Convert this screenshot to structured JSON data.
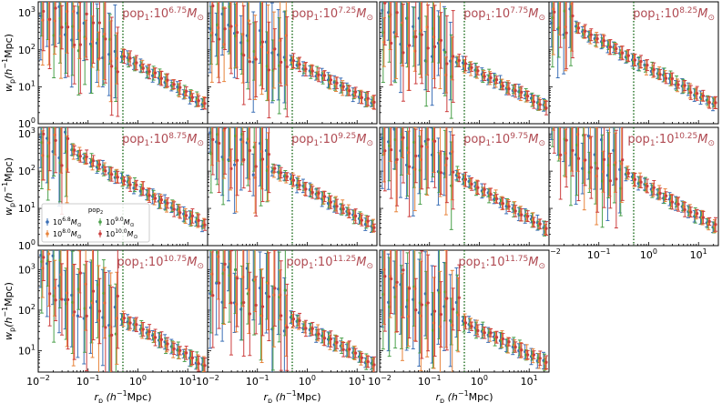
{
  "chart_data": {
    "type": "scatter",
    "xlabel_prefix": "r",
    "xlabel_sub": "p",
    "xlabel_suffix": " (h",
    "xlabel_sup": "−1",
    "xlabel_end": "Mpc)",
    "ylabel_prefix": "w",
    "ylabel_sub": "p",
    "ylabel_suffix": "(h",
    "ylabel_sup": "−1",
    "ylabel_end": "Mpc)",
    "x_scale": "log",
    "y_scale": "log",
    "xlim": [
      0.01,
      25
    ],
    "ylim_rows": [
      [
        1,
        2000
      ],
      [
        1,
        1500
      ],
      [
        3,
        3000
      ]
    ],
    "x_ticks": [
      {
        "base": "10",
        "exp": "−2"
      },
      {
        "base": "10",
        "exp": "−1"
      },
      {
        "base": "10",
        "exp": "0"
      },
      {
        "base": "10",
        "exp": "1"
      }
    ],
    "y_ticks_rows": [
      [
        {
          "base": "10",
          "exp": "0"
        },
        {
          "base": "10",
          "exp": "1"
        },
        {
          "base": "10",
          "exp": "2"
        },
        {
          "base": "10",
          "exp": "3"
        }
      ],
      [
        {
          "base": "10",
          "exp": "0"
        },
        {
          "base": "10",
          "exp": "1"
        },
        {
          "base": "10",
          "exp": "2"
        },
        {
          "base": "10",
          "exp": "3"
        }
      ],
      [
        {
          "base": "10",
          "exp": "1"
        },
        {
          "base": "10",
          "exp": "2"
        },
        {
          "base": "10",
          "exp": "3"
        }
      ]
    ],
    "vline_x": 0.5,
    "vline_color": "#1a6b1a",
    "legend": {
      "title_main": "pop",
      "title_sub": "2",
      "placement": "lower-left of panel 5",
      "entries": [
        {
          "base": "10",
          "exp": "6.8",
          "unit": "M",
          "sub": "⊙",
          "color": "#3b6fb6"
        },
        {
          "base": "10",
          "exp": "9.0",
          "unit": "M",
          "sub": "⊙",
          "color": "#4aa04a"
        },
        {
          "base": "10",
          "exp": "8.0",
          "unit": "M",
          "sub": "⊙",
          "color": "#e8833a"
        },
        {
          "base": "10",
          "exp": "10.0",
          "unit": "M",
          "sub": "⊙",
          "color": "#cc3d3d"
        }
      ]
    },
    "series_colors": [
      "#3b6fb6",
      "#4aa04a",
      "#e8833a",
      "#cc3d3d"
    ],
    "x": [
      0.012,
      0.016,
      0.021,
      0.028,
      0.037,
      0.05,
      0.066,
      0.088,
      0.12,
      0.16,
      0.21,
      0.28,
      0.37,
      0.5,
      0.66,
      0.88,
      1.2,
      1.6,
      2.1,
      2.8,
      3.7,
      5.0,
      6.6,
      8.8,
      11.7,
      15.6,
      20.7
    ],
    "panels": [
      {
        "title_prefix": "pop",
        "title_sub": "1",
        "title_base": ":10",
        "title_exp": "6.75",
        "title_unit": "M",
        "title_unit_sub": "⊙",
        "amp": 70,
        "slope": 0.8,
        "noisy_below": 0.5
      },
      {
        "title_prefix": "pop",
        "title_sub": "1",
        "title_base": ":10",
        "title_exp": "7.25",
        "title_unit": "M",
        "title_unit_sub": "⊙",
        "amp": 50,
        "slope": 0.7,
        "noisy_below": 0.5
      },
      {
        "title_prefix": "pop",
        "title_sub": "1",
        "title_base": ":10",
        "title_exp": "7.75",
        "title_unit": "M",
        "title_unit_sub": "⊙",
        "amp": 40,
        "slope": 0.7,
        "noisy_below": 0.3
      },
      {
        "title_prefix": "pop",
        "title_sub": "1",
        "title_base": ":10",
        "title_exp": "8.25",
        "title_unit": "M",
        "title_unit_sub": "⊙",
        "amp": 55,
        "slope": 0.75,
        "noisy_below": 0.03
      },
      {
        "title_prefix": "pop",
        "title_sub": "1",
        "title_base": ":10",
        "title_exp": "8.75",
        "title_unit": "M",
        "title_unit_sub": "⊙",
        "amp": 60,
        "slope": 0.75,
        "noisy_below": 0.05
      },
      {
        "title_prefix": "pop",
        "title_sub": "1",
        "title_base": ":10",
        "title_exp": "9.25",
        "title_unit": "M",
        "title_unit_sub": "⊙",
        "amp": 55,
        "slope": 0.75,
        "noisy_below": 0.2
      },
      {
        "title_prefix": "pop",
        "title_sub": "1",
        "title_base": ":10",
        "title_exp": "9.75",
        "title_unit": "M",
        "title_unit_sub": "⊙",
        "amp": 60,
        "slope": 0.8,
        "noisy_below": 0.3
      },
      {
        "title_prefix": "pop",
        "title_sub": "1",
        "title_base": ":10",
        "title_exp": "10.25",
        "title_unit": "M",
        "title_unit_sub": "⊙",
        "amp": 65,
        "slope": 0.8,
        "noisy_below": 0.3
      },
      {
        "title_prefix": "pop",
        "title_sub": "1",
        "title_base": ":10",
        "title_exp": "10.75",
        "title_unit": "M",
        "title_unit_sub": "⊙",
        "amp": 60,
        "slope": 0.7,
        "noisy_below": 0.5
      },
      {
        "title_prefix": "pop",
        "title_sub": "1",
        "title_base": ":10",
        "title_exp": "11.25",
        "title_unit": "M",
        "title_unit_sub": "⊙",
        "amp": 60,
        "slope": 0.7,
        "noisy_below": 0.5
      },
      {
        "title_prefix": "pop",
        "title_sub": "1",
        "title_base": ":10",
        "title_exp": "11.75",
        "title_unit": "M",
        "title_unit_sub": "⊙",
        "amp": 50,
        "slope": 0.6,
        "noisy_below": 0.5
      }
    ]
  }
}
